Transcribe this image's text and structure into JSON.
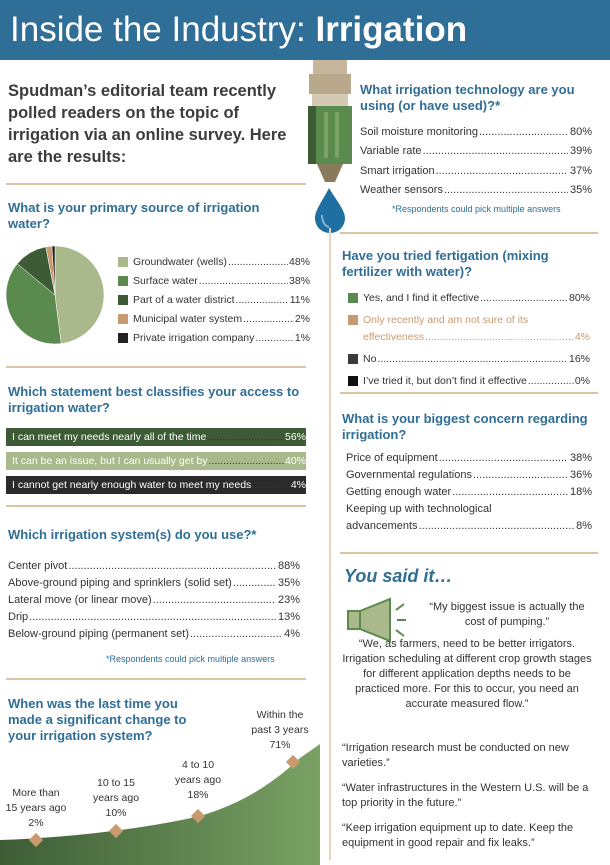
{
  "header": {
    "title_prefix": "Inside the Industry:",
    "title_bold": "Irrigation"
  },
  "intro": "Spudman’s editorial team recently polled readers on the topic of irrigation via an online survey. Here are the results:",
  "colors": {
    "banner": "#2f6e96",
    "accent_blue": "#2f6e96",
    "green_dark": "#3d5c35",
    "green_mid": "#5b8a4f",
    "green_light": "#a9b98b",
    "tan": "#c99a70",
    "black": "#222222"
  },
  "q_source": {
    "title": "What is your primary source of irrigation water?",
    "items": [
      {
        "label": "Groundwater (wells)",
        "value": "48%",
        "color": "#a9b98b"
      },
      {
        "label": "Surface water",
        "value": "38%",
        "color": "#5b8a4f"
      },
      {
        "label": "Part of a water district",
        "value": "11%",
        "color": "#3d5c35"
      },
      {
        "label": "Municipal water system",
        "value": "2%",
        "color": "#c99a70"
      },
      {
        "label": "Private irrigation company",
        "value": "1%",
        "color": "#222222"
      }
    ]
  },
  "q_access": {
    "title": "Which statement best classifies your access to irrigation water?",
    "items": [
      {
        "label": "I can meet my needs nearly all of the time",
        "value": "56%",
        "color": "#3d5c35"
      },
      {
        "label": "It can be an issue, but I can usually get by",
        "value": "40%",
        "color": "#a9b98b"
      },
      {
        "label": "I cannot get nearly enough water to meet my needs",
        "value": "4%",
        "color": "#2b2b2b"
      }
    ]
  },
  "q_system": {
    "title": "Which irrigation system(s) do you use?*",
    "items": [
      {
        "label": "Center pivot",
        "value": "88%"
      },
      {
        "label": "Above-ground piping and sprinklers (solid set)",
        "value": "35%"
      },
      {
        "label": "Lateral move (or linear move)",
        "value": "23%"
      },
      {
        "label": "Drip",
        "value": "13%"
      },
      {
        "label": "Below-ground piping (permanent set)",
        "value": "4%"
      }
    ],
    "note": "*Respondents could pick multiple answers"
  },
  "q_change": {
    "title": "When was the last time you made a significant change to your irrigation system?",
    "points": [
      {
        "label_top": "More than",
        "label_mid": "15 years ago",
        "value": "2%"
      },
      {
        "label_top": "10 to 15",
        "label_mid": "years ago",
        "value": "10%"
      },
      {
        "label_top": "4 to 10",
        "label_mid": "years ago",
        "value": "18%"
      },
      {
        "label_top": "Within the",
        "label_mid": "past 3 years",
        "value": "71%"
      }
    ]
  },
  "q_tech": {
    "title": "What irrigation technology are you using (or have used)?*",
    "items": [
      {
        "label": "Soil moisture monitoring",
        "value": "80%"
      },
      {
        "label": "Variable rate",
        "value": "39%"
      },
      {
        "label": "Smart irrigation",
        "value": "37%"
      },
      {
        "label": "Weather sensors",
        "value": "35%"
      }
    ],
    "note": "*Respondents could pick multiple answers"
  },
  "q_fert": {
    "title": "Have you tried fertigation (mixing fertilizer with water)?",
    "items": [
      {
        "label": "Yes, and I find it effective",
        "value": "80%",
        "color": "#5b8a4f"
      },
      {
        "label": "Only recently and am not sure of its",
        "label2": "effectiveness",
        "value": "4%",
        "color": "#c99a70"
      },
      {
        "label": "No",
        "value": "16%",
        "color": "#3a3a3a"
      },
      {
        "label": "I’ve tried it, but don’t find it effective",
        "value": "0%",
        "color": "#111111"
      }
    ]
  },
  "q_concern": {
    "title": "What is your biggest concern regarding irrigation?",
    "items": [
      {
        "label": "Price of equipment",
        "value": "38%"
      },
      {
        "label": "Governmental regulations",
        "value": "36%"
      },
      {
        "label": "Getting enough water",
        "value": "18%"
      },
      {
        "label": "Keeping up with technological",
        "label2": "advancements",
        "value": "8%"
      }
    ]
  },
  "you_said": {
    "title": "You said it…",
    "quotes": [
      "“My biggest issue is actually the cost of pumping.”",
      "“We, as farmers, need to be better irrigators. Irrigation scheduling at different crop growth stages for different application depths needs to be practiced more. For this to occur, you need an accurate measured flow.”",
      "“Irrigation research must be conducted on new varieties.”",
      "“Water infrastructures in the Western U.S. will be a top priority in the future.”",
      "“Keep irrigation equipment up to date. Keep the equipment in good repair and fix leaks.”"
    ]
  },
  "chart_data": [
    {
      "type": "pie",
      "title": "What is your primary source of irrigation water?",
      "categories": [
        "Groundwater (wells)",
        "Surface water",
        "Part of a water district",
        "Municipal water system",
        "Private irrigation company"
      ],
      "values": [
        48,
        38,
        11,
        2,
        1
      ]
    },
    {
      "type": "bar",
      "title": "Which statement best classifies your access to irrigation water?",
      "categories": [
        "I can meet my needs nearly all of the time",
        "It can be an issue, but I can usually get by",
        "I cannot get nearly enough water to meet my needs"
      ],
      "values": [
        56,
        40,
        4
      ]
    },
    {
      "type": "area",
      "title": "When was the last time you made a significant change to your irrigation system?",
      "categories": [
        "More than 15 years ago",
        "10 to 15 years ago",
        "4 to 10 years ago",
        "Within the past 3 years"
      ],
      "values": [
        2,
        10,
        18,
        71
      ]
    }
  ]
}
